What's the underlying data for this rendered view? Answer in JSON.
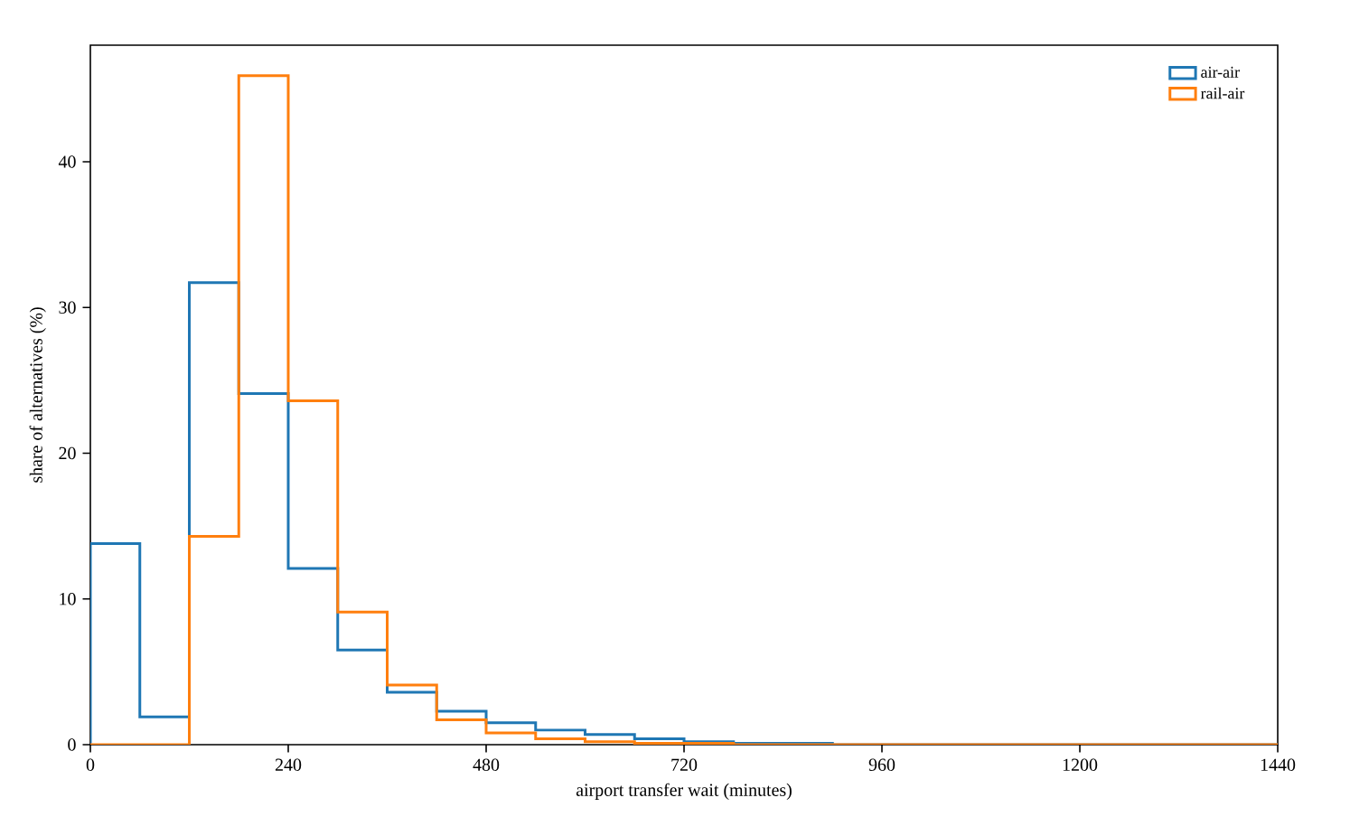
{
  "chart_data": {
    "type": "histogram",
    "xlabel": "airport transfer wait (minutes)",
    "ylabel": "share of alternatives (%)",
    "bins": [
      0,
      60,
      120,
      180,
      240,
      300,
      360,
      420,
      480,
      540,
      600,
      660,
      720,
      780,
      840,
      900,
      960,
      1020,
      1080,
      1140,
      1200,
      1260,
      1320,
      1380,
      1440
    ],
    "series": [
      {
        "name": "air-air",
        "color": "#1f77b4",
        "values": [
          13.8,
          1.9,
          31.7,
          24.1,
          12.1,
          6.5,
          3.6,
          2.3,
          1.5,
          1.0,
          0.7,
          0.4,
          0.2,
          0.1,
          0.1,
          0,
          0,
          0,
          0,
          0,
          0,
          0,
          0,
          0
        ]
      },
      {
        "name": "rail-air",
        "color": "#ff7f0e",
        "values": [
          0,
          0,
          14.3,
          45.9,
          23.6,
          9.1,
          4.1,
          1.7,
          0.8,
          0.4,
          0.2,
          0.1,
          0.1,
          0,
          0,
          0,
          0,
          0,
          0,
          0,
          0,
          0,
          0,
          0
        ]
      }
    ],
    "xlim": [
      0,
      1440
    ],
    "ylim": [
      0,
      48
    ],
    "xticks": [
      0,
      240,
      480,
      720,
      960,
      1200,
      1440
    ],
    "yticks": [
      0,
      10,
      20,
      30,
      40
    ],
    "grid": false,
    "legend": "top right"
  }
}
